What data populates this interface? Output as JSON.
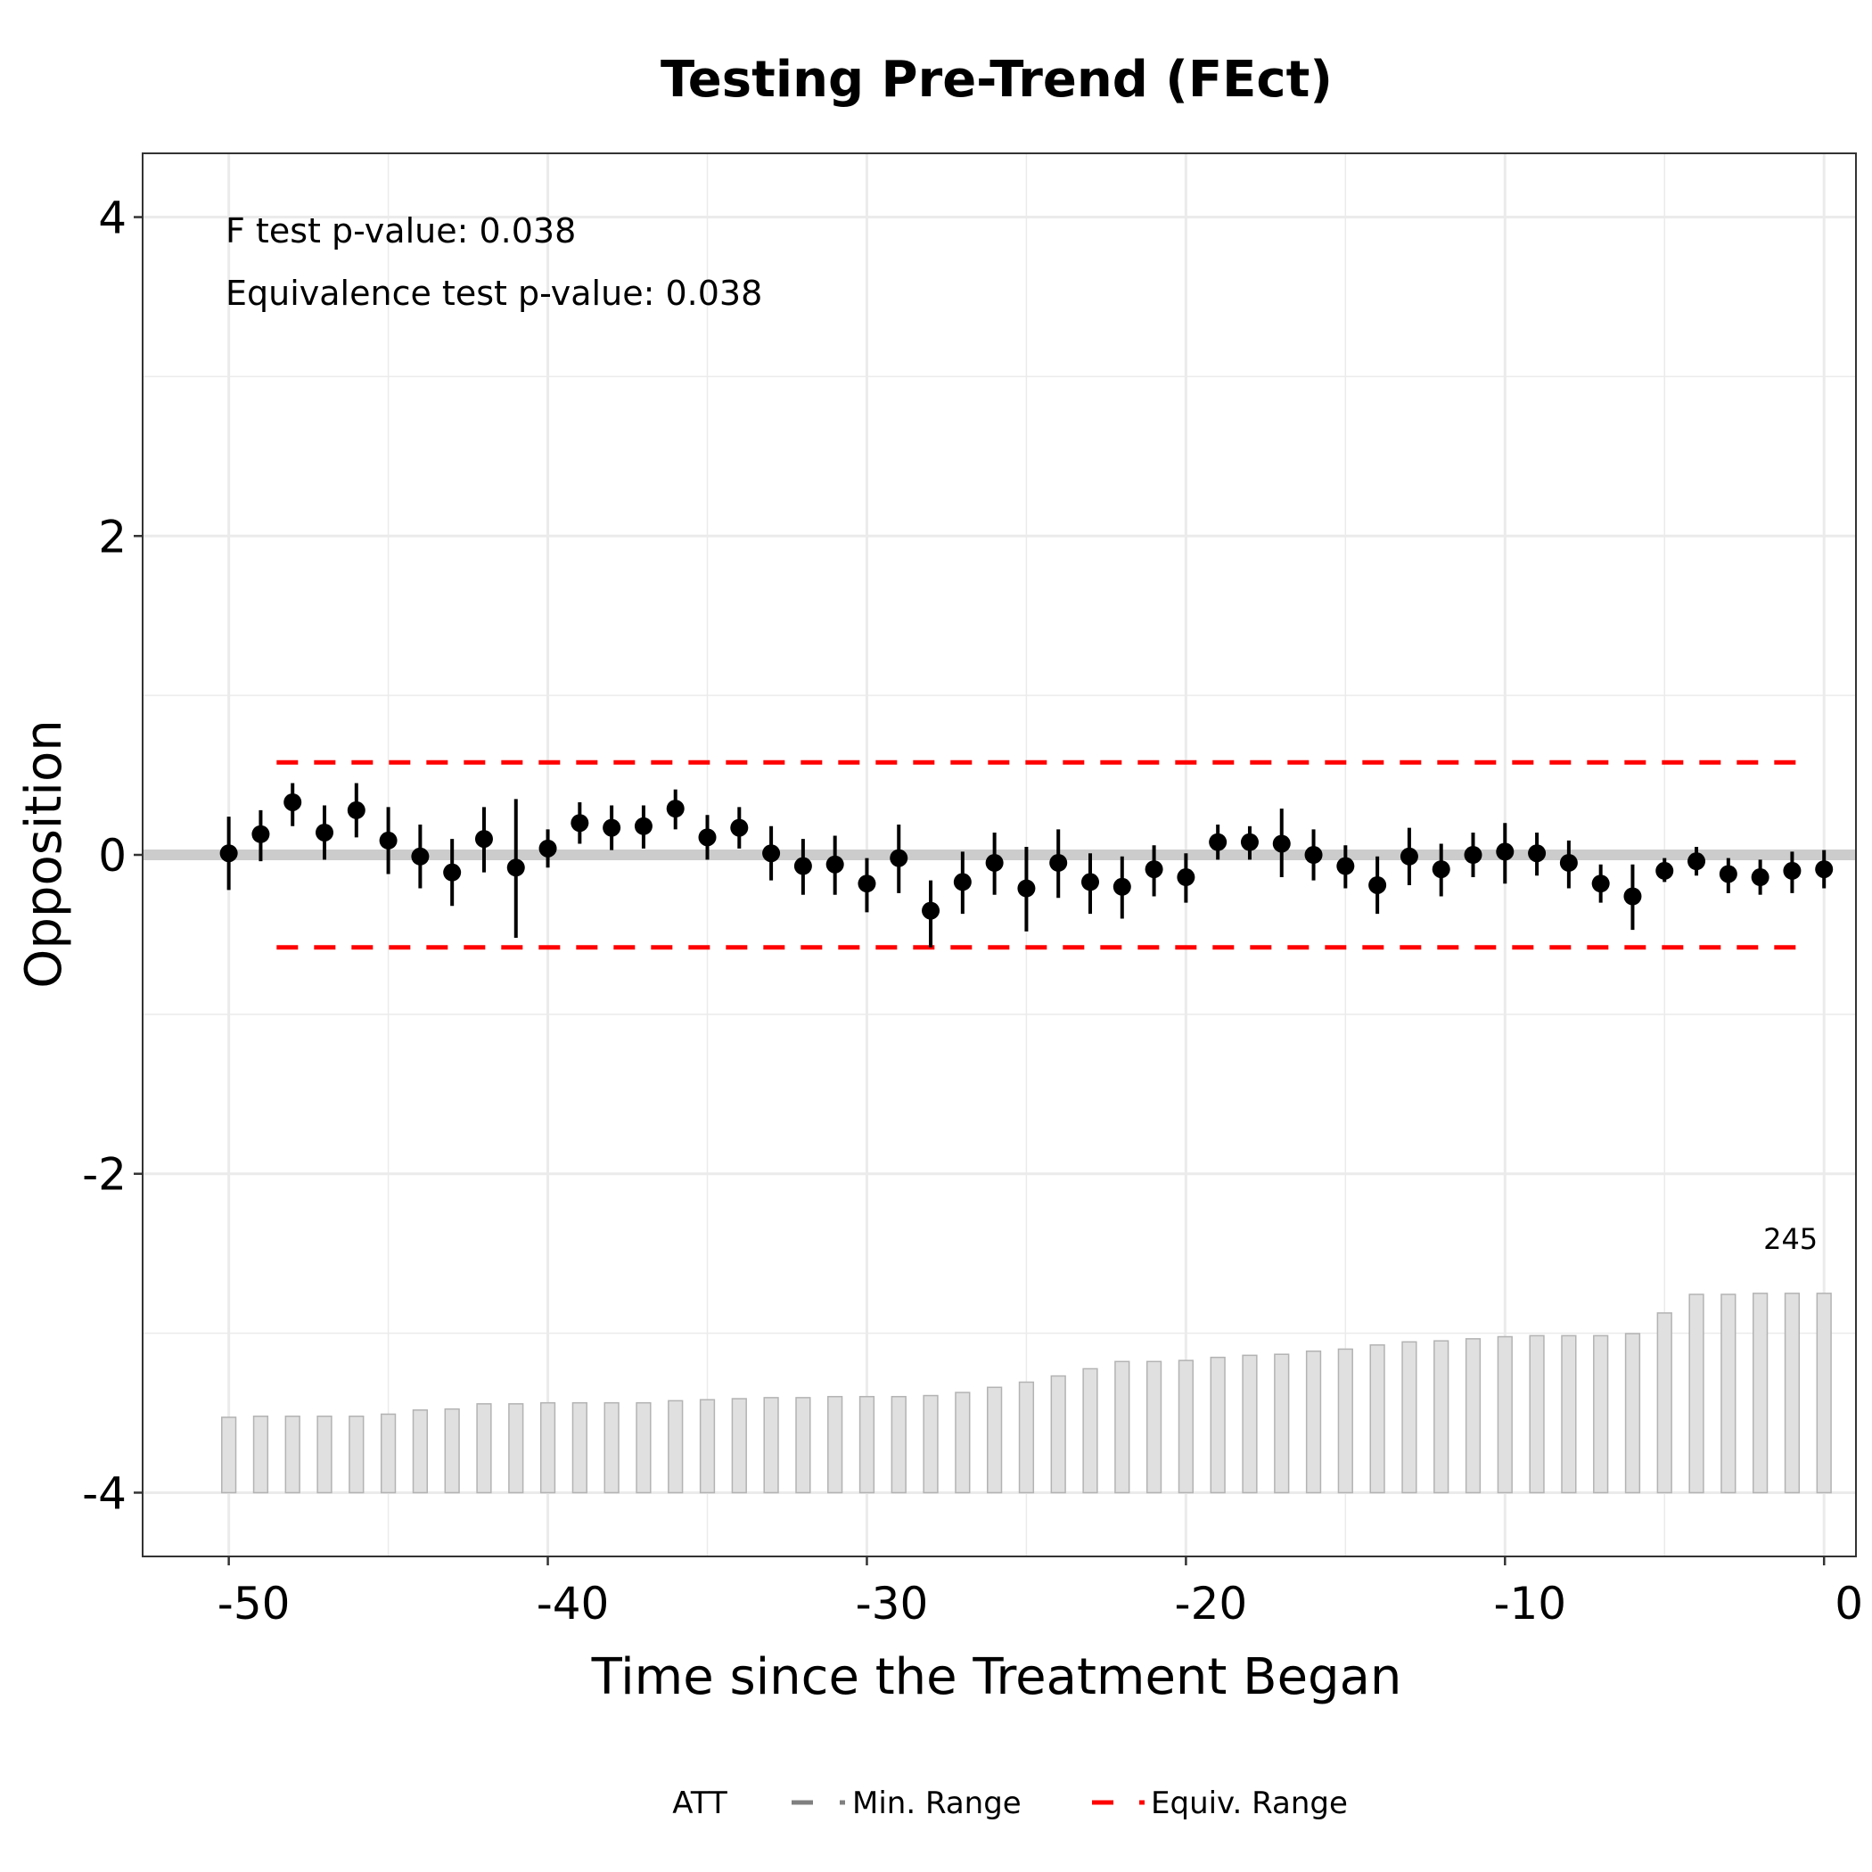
{
  "chart_data": {
    "type": "scatter",
    "title": "Testing Pre-Trend (FEct)",
    "xlabel": "Time since the Treatment Began",
    "ylabel": "Opposition",
    "xlim": [
      -52.7,
      1.0
    ],
    "ylim": [
      -4.4,
      4.4
    ],
    "x_ticks": [
      -50,
      -40,
      -30,
      -20,
      -10,
      0
    ],
    "y_ticks": [
      -4,
      -2,
      0,
      2,
      4
    ],
    "x_tick_labels": [
      "-50",
      "-40",
      "-30",
      "-20",
      "-10",
      "0"
    ],
    "y_tick_labels": [
      "-4",
      "-2",
      "0",
      "2",
      "4"
    ],
    "grid": true,
    "annotations": [
      "F test p-value: 0.038",
      "Equivalence test p-value: 0.038"
    ],
    "equivalence_range": [
      -0.58,
      0.58
    ],
    "min_range_line": 0,
    "count_label": "245",
    "count_baseline": -4,
    "count_max": 245,
    "x": [
      -50,
      -49,
      -48,
      -47,
      -46,
      -45,
      -44,
      -43,
      -42,
      -41,
      -40,
      -39,
      -38,
      -37,
      -36,
      -35,
      -34,
      -33,
      -32,
      -31,
      -30,
      -29,
      -28,
      -27,
      -26,
      -25,
      -24,
      -23,
      -22,
      -21,
      -20,
      -19,
      -18,
      -17,
      -16,
      -15,
      -14,
      -13,
      -12,
      -11,
      -10,
      -9,
      -8,
      -7,
      -6,
      -5,
      -4,
      -3,
      -2,
      -1,
      0
    ],
    "series": [
      {
        "name": "ATT",
        "values": [
          0.01,
          0.13,
          0.33,
          0.14,
          0.28,
          0.09,
          -0.01,
          -0.11,
          0.1,
          -0.08,
          0.04,
          0.2,
          0.17,
          0.18,
          0.29,
          0.11,
          0.17,
          0.01,
          -0.07,
          -0.06,
          -0.18,
          -0.02,
          -0.35,
          -0.17,
          -0.05,
          -0.21,
          -0.05,
          -0.17,
          -0.2,
          -0.09,
          -0.14,
          0.08,
          0.08,
          0.07,
          0.0,
          -0.07,
          -0.19,
          -0.01,
          -0.09,
          0.0,
          0.02,
          0.01,
          -0.05,
          -0.18,
          -0.26,
          -0.1,
          -0.04,
          -0.12,
          -0.14,
          -0.1,
          -0.09
        ],
        "ci_lower": [
          -0.22,
          -0.04,
          0.18,
          -0.03,
          0.11,
          -0.12,
          -0.21,
          -0.32,
          -0.11,
          -0.52,
          -0.08,
          0.07,
          0.03,
          0.04,
          0.16,
          -0.03,
          0.04,
          -0.16,
          -0.25,
          -0.25,
          -0.36,
          -0.24,
          -0.58,
          -0.37,
          -0.25,
          -0.48,
          -0.27,
          -0.37,
          -0.4,
          -0.26,
          -0.3,
          -0.03,
          -0.03,
          -0.14,
          -0.16,
          -0.21,
          -0.37,
          -0.19,
          -0.26,
          -0.14,
          -0.18,
          -0.13,
          -0.21,
          -0.3,
          -0.47,
          -0.17,
          -0.13,
          -0.24,
          -0.25,
          -0.24,
          -0.21
        ],
        "ci_upper": [
          0.24,
          0.28,
          0.45,
          0.31,
          0.45,
          0.3,
          0.19,
          0.1,
          0.3,
          0.35,
          0.16,
          0.33,
          0.31,
          0.31,
          0.41,
          0.25,
          0.3,
          0.18,
          0.1,
          0.12,
          -0.02,
          0.19,
          -0.16,
          0.02,
          0.14,
          0.05,
          0.16,
          0.01,
          -0.01,
          0.06,
          0.01,
          0.19,
          0.18,
          0.29,
          0.16,
          0.06,
          -0.01,
          0.17,
          0.07,
          0.14,
          0.2,
          0.14,
          0.09,
          -0.06,
          -0.06,
          -0.02,
          0.05,
          -0.02,
          -0.03,
          0.02,
          0.03
        ]
      }
    ],
    "counts": [
      73,
      74,
      74,
      74,
      74,
      76,
      80,
      81,
      86,
      86,
      87,
      87,
      87,
      87,
      89,
      90,
      91,
      92,
      92,
      93,
      93,
      93,
      94,
      97,
      102,
      107,
      113,
      120,
      127,
      127,
      128,
      131,
      133,
      134,
      137,
      139,
      143,
      146,
      147,
      149,
      151,
      152,
      152,
      152,
      154,
      174,
      192,
      192,
      193,
      193,
      193
    ],
    "legend": {
      "position": "bottom",
      "items": [
        "ATT",
        "Min. Range",
        "Equiv. Range"
      ]
    },
    "colors": {
      "points": "#000000",
      "equiv_range": "#ff0000",
      "min_range": "#808080",
      "zero_line": "#cccccc",
      "bars_fill": "#e0e0e0",
      "bars_stroke": "#b3b3b3",
      "grid": "#ebebeb",
      "panel_border": "#333333"
    }
  }
}
